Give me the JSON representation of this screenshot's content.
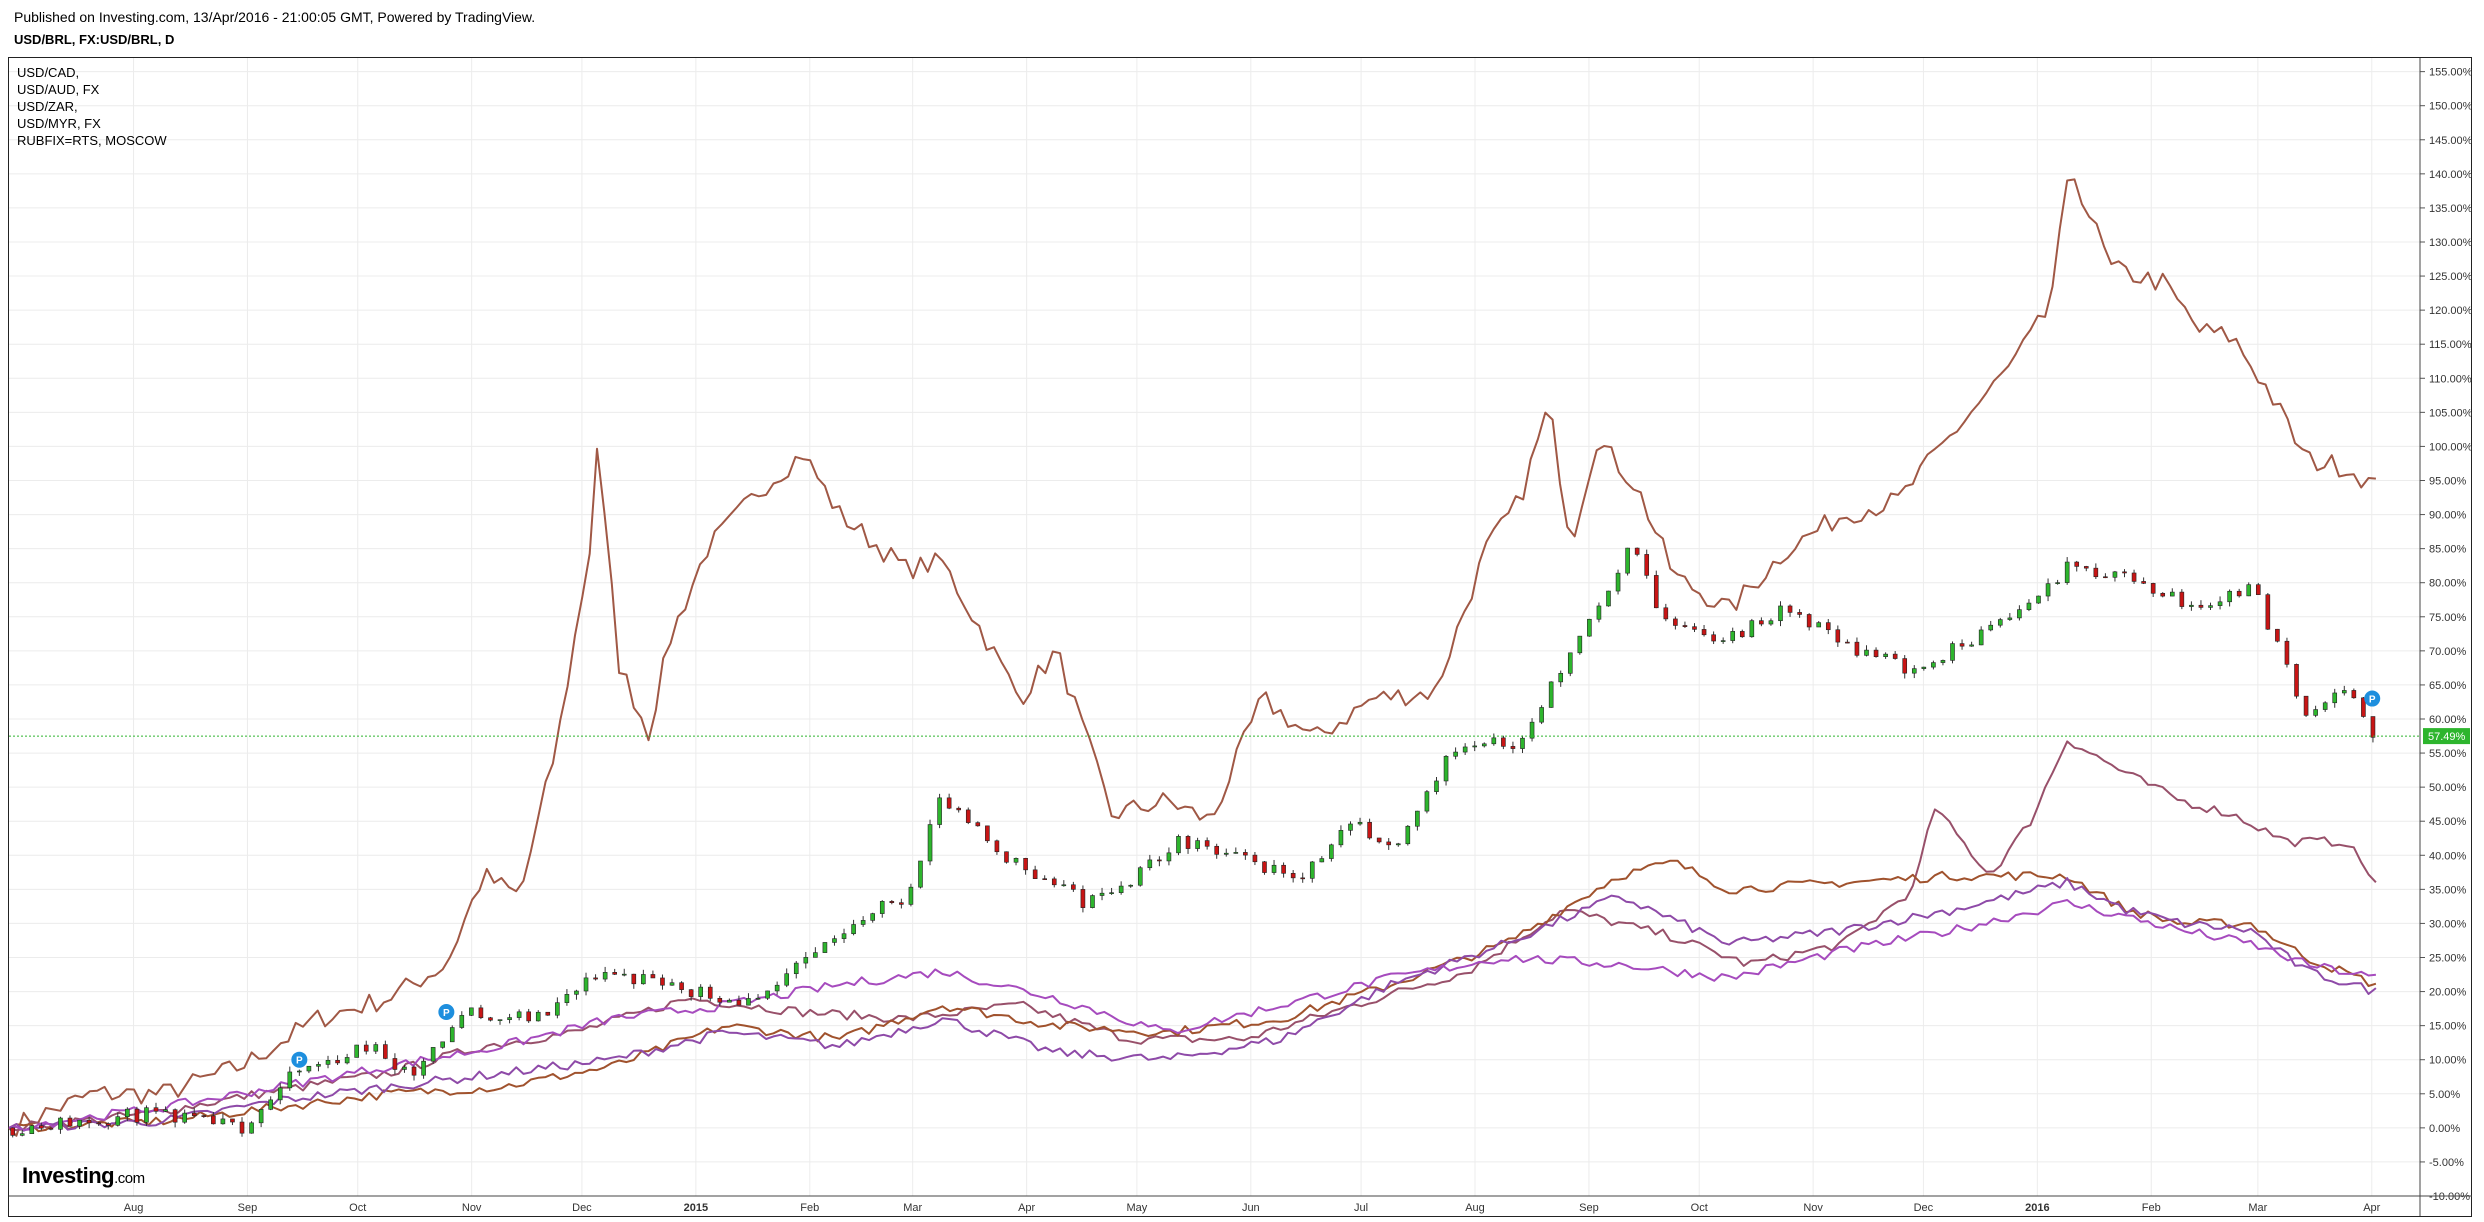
{
  "header": {
    "published": "Published on Investing.com, 13/Apr/2016 - 21:00:05 GMT, Powered by TradingView.",
    "symbol": "USD/BRL, FX:USD/BRL, D"
  },
  "legend": [
    "USD/CAD,",
    "USD/AUD, FX",
    "USD/ZAR,",
    "USD/MYR, FX",
    "RUBFIX=RTS, MOSCOW"
  ],
  "brand": {
    "name": "Investing",
    "suffix": ".com"
  },
  "current_value_label": "57.49%",
  "chart_data": {
    "type": "line",
    "title": "USD/BRL, FX:USD/BRL, D",
    "x_ticks": [
      "Aug",
      "Sep",
      "Oct",
      "Nov",
      "Dec",
      "2015",
      "Feb",
      "Mar",
      "Apr",
      "May",
      "Jun",
      "Jul",
      "Aug",
      "Sep",
      "Oct",
      "Nov",
      "Dec",
      "2016",
      "Feb",
      "Mar",
      "Apr"
    ],
    "x_ticks_bold": [
      "2015",
      "2016"
    ],
    "y_ticks": [
      "155.00%",
      "150.00%",
      "145.00%",
      "140.00%",
      "135.00%",
      "130.00%",
      "125.00%",
      "120.00%",
      "115.00%",
      "110.00%",
      "105.00%",
      "100.00%",
      "95.00%",
      "90.00%",
      "85.00%",
      "80.00%",
      "75.00%",
      "70.00%",
      "65.00%",
      "60.00%",
      "55.00%",
      "50.00%",
      "45.00%",
      "40.00%",
      "35.00%",
      "30.00%",
      "25.00%",
      "20.00%",
      "15.00%",
      "10.00%",
      "5.00%",
      "0.00%",
      "-5.00%",
      "-10.00%"
    ],
    "ylim": [
      -10,
      157
    ],
    "x_range": [
      "2014-07-09",
      "2016-04-25"
    ],
    "grid": true,
    "current_value": 57.49,
    "colors": {
      "main_up": "#2db52d",
      "main_down": "#c81515",
      "ruble": "#a05845",
      "zar": "#98506a",
      "cad": "#a0522d",
      "aud": "#8e4aa8",
      "myr": "#a64bbe",
      "price_line": "#2db52d",
      "marker": "#1e8fde"
    },
    "markers": [
      {
        "label": "P",
        "date": "2014-09-26",
        "value": 10
      },
      {
        "label": "P",
        "date": "2014-11-05",
        "value": 17
      },
      {
        "label": "P",
        "date": "2016-04-12",
        "value": 63
      }
    ],
    "candles_anchor_dates": [
      "2014-07-10",
      "2014-08-15",
      "2014-09-10",
      "2014-09-25",
      "2014-10-15",
      "2014-10-27",
      "2014-11-10",
      "2014-12-01",
      "2014-12-17",
      "2015-01-05",
      "2015-01-29",
      "2015-02-20",
      "2015-03-10",
      "2015-03-19",
      "2015-04-06",
      "2015-04-28",
      "2015-05-10",
      "2015-05-22",
      "2015-06-05",
      "2015-06-25",
      "2015-07-10",
      "2015-07-20",
      "2015-08-05",
      "2015-08-25",
      "2015-09-10",
      "2015-09-24",
      "2015-10-01",
      "2015-10-15",
      "2015-11-05",
      "2015-11-25",
      "2015-12-10",
      "2016-01-05",
      "2016-01-20",
      "2016-02-05",
      "2016-02-25",
      "2016-03-10",
      "2016-03-25",
      "2016-04-05",
      "2016-04-13"
    ],
    "candles_anchor_values": [
      0,
      2,
      0,
      8,
      12,
      8,
      17,
      16,
      23,
      21,
      18,
      29,
      34,
      48,
      40,
      33,
      36,
      42,
      40,
      37,
      45,
      41,
      55,
      57,
      73,
      86,
      75,
      71,
      76,
      70,
      67,
      75,
      82,
      81,
      76,
      80,
      61,
      64,
      57.49
    ],
    "series": [
      {
        "name": "RUBFIX=RTS, MOSCOW",
        "color_key": "ruble",
        "dates": [
          "2014-07-09",
          "2014-08-01",
          "2014-08-20",
          "2014-09-10",
          "2014-10-01",
          "2014-10-20",
          "2014-11-05",
          "2014-11-15",
          "2014-11-25",
          "2014-12-05",
          "2014-12-15",
          "2014-12-16",
          "2014-12-22",
          "2014-12-30",
          "2015-01-05",
          "2015-01-15",
          "2015-01-30",
          "2015-02-10",
          "2015-02-20",
          "2015-03-10",
          "2015-03-20",
          "2015-04-10",
          "2015-04-20",
          "2015-05-05",
          "2015-05-20",
          "2015-06-01",
          "2015-06-15",
          "2015-06-29",
          "2015-07-15",
          "2015-08-01",
          "2015-08-15",
          "2015-08-24",
          "2015-09-01",
          "2015-09-07",
          "2015-09-14",
          "2015-09-25",
          "2015-10-05",
          "2015-10-20",
          "2015-11-05",
          "2015-11-20",
          "2015-12-05",
          "2015-12-20",
          "2016-01-05",
          "2016-01-15",
          "2016-01-21",
          "2016-02-01",
          "2016-02-15",
          "2016-02-25",
          "2016-03-05",
          "2016-03-15",
          "2016-03-25",
          "2016-04-05",
          "2016-04-13"
        ],
        "values": [
          0,
          5,
          5,
          9,
          16,
          19,
          24,
          37,
          34,
          56,
          88,
          100,
          68,
          58,
          72,
          85,
          94,
          99,
          90,
          82,
          83,
          63,
          70,
          46,
          48,
          45,
          63,
          57,
          63,
          64,
          85,
          92,
          106,
          86,
          101,
          94,
          81,
          76,
          85,
          90,
          92,
          102,
          112,
          120,
          141,
          126,
          124,
          117,
          116,
          108,
          98,
          97,
          94
        ]
      },
      {
        "name": "USD/ZAR,",
        "color_key": "zar",
        "dates": [
          "2014-07-09",
          "2014-08-15",
          "2014-09-15",
          "2014-10-20",
          "2014-11-15",
          "2014-12-10",
          "2015-01-10",
          "2015-02-10",
          "2015-03-10",
          "2015-04-10",
          "2015-05-10",
          "2015-06-10",
          "2015-07-10",
          "2015-08-10",
          "2015-09-05",
          "2015-10-05",
          "2015-10-25",
          "2015-11-20",
          "2015-12-09",
          "2015-12-15",
          "2015-12-30",
          "2016-01-10",
          "2016-01-20",
          "2016-02-05",
          "2016-02-20",
          "2016-03-05",
          "2016-03-20",
          "2016-04-05",
          "2016-04-13"
        ],
        "values": [
          0,
          2,
          5,
          8,
          12,
          14,
          19,
          17,
          16,
          18,
          13,
          13,
          18,
          23,
          32,
          28,
          24,
          27,
          35,
          47,
          37,
          45,
          57,
          52,
          48,
          46,
          42,
          42,
          36
        ]
      },
      {
        "name": "USD/CAD,",
        "color_key": "cad",
        "dates": [
          "2014-07-09",
          "2014-08-20",
          "2014-09-20",
          "2014-10-20",
          "2014-11-20",
          "2014-12-20",
          "2015-01-20",
          "2015-02-20",
          "2015-03-20",
          "2015-04-20",
          "2015-05-20",
          "2015-06-20",
          "2015-07-20",
          "2015-08-20",
          "2015-09-20",
          "2015-10-05",
          "2015-10-20",
          "2015-11-20",
          "2015-12-20",
          "2016-01-20",
          "2016-02-05",
          "2016-02-20",
          "2016-03-10",
          "2016-03-25",
          "2016-04-13"
        ],
        "values": [
          0,
          1,
          3,
          5,
          6,
          9,
          15,
          13,
          18,
          15,
          14,
          16,
          21,
          27,
          37,
          39,
          35,
          36,
          37,
          37,
          32,
          30,
          30,
          25,
          21
        ]
      },
      {
        "name": "USD/AUD, FX",
        "color_key": "aud",
        "dates": [
          "2014-07-09",
          "2014-08-20",
          "2014-09-20",
          "2014-10-20",
          "2014-11-20",
          "2014-12-20",
          "2015-01-20",
          "2015-02-20",
          "2015-03-20",
          "2015-04-20",
          "2015-05-20",
          "2015-06-20",
          "2015-07-20",
          "2015-08-20",
          "2015-09-20",
          "2015-10-20",
          "2015-11-20",
          "2015-12-20",
          "2016-01-20",
          "2016-02-05",
          "2016-02-20",
          "2016-03-10",
          "2016-03-25",
          "2016-04-13"
        ],
        "values": [
          0,
          1,
          4,
          6,
          8,
          10,
          14,
          12,
          16,
          11,
          10,
          13,
          21,
          27,
          34,
          27,
          29,
          32,
          36,
          32,
          30,
          29,
          23,
          20
        ]
      },
      {
        "name": "USD/MYR, FX",
        "color_key": "myr",
        "dates": [
          "2014-07-09",
          "2014-08-20",
          "2014-09-20",
          "2014-10-20",
          "2014-11-20",
          "2014-12-20",
          "2015-01-20",
          "2015-02-20",
          "2015-03-20",
          "2015-04-20",
          "2015-05-20",
          "2015-06-20",
          "2015-07-20",
          "2015-08-20",
          "2015-09-20",
          "2015-10-20",
          "2015-11-20",
          "2015-12-20",
          "2016-01-20",
          "2016-02-05",
          "2016-02-20",
          "2016-03-10",
          "2016-03-25",
          "2016-04-13"
        ],
        "values": [
          0,
          3,
          6,
          9,
          12,
          16,
          18,
          21,
          23,
          19,
          14,
          18,
          22,
          25,
          24,
          22,
          26,
          29,
          33,
          31,
          29,
          27,
          24,
          22
        ]
      }
    ]
  }
}
